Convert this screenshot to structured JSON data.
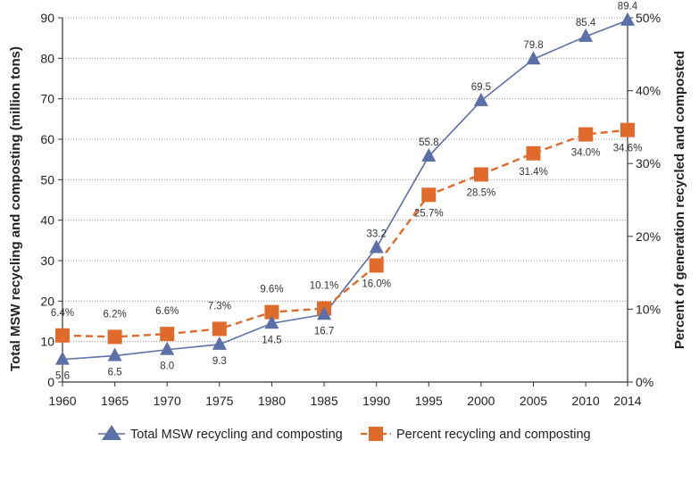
{
  "chart_data": {
    "type": "line",
    "title": "",
    "x": [
      1960,
      1965,
      1970,
      1975,
      1980,
      1985,
      1990,
      1995,
      2000,
      2005,
      2010,
      2014
    ],
    "xlabels": [
      "1960",
      "1965",
      "1970",
      "1975",
      "1980",
      "1985",
      "1990",
      "1995",
      "2000",
      "2005",
      "2010",
      "2014"
    ],
    "left_axis": {
      "label": "Total MSW recycling and composting (million tons)",
      "range": [
        0,
        90
      ],
      "ticks": [
        "0",
        "10",
        "20",
        "30",
        "40",
        "50",
        "60",
        "70",
        "80",
        "90"
      ]
    },
    "right_axis": {
      "label": "Percent of generation recycled and composted",
      "range": [
        0,
        50
      ],
      "ticks": [
        "0%",
        "10%",
        "20%",
        "30%",
        "40%",
        "50%"
      ]
    },
    "grid": true,
    "legend_position": "bottom-center",
    "series": [
      {
        "name": "Total MSW recycling and composting",
        "axis": "left",
        "marker": "triangle",
        "color": "#5b6fa8",
        "values": [
          5.6,
          6.5,
          8.0,
          9.3,
          14.5,
          16.7,
          33.2,
          55.8,
          69.5,
          79.8,
          85.4,
          89.4
        ],
        "labels": [
          "5.6",
          "6.5",
          "8.0",
          "9.3",
          "14.5",
          "16.7",
          "33.2",
          "55.8",
          "69.5",
          "79.8",
          "85.4",
          "89.4"
        ]
      },
      {
        "name": "Percent recycling and composting",
        "axis": "right",
        "marker": "square",
        "color": "#e06a2c",
        "values": [
          6.4,
          6.2,
          6.6,
          7.3,
          9.6,
          10.1,
          16.0,
          25.7,
          28.5,
          31.4,
          34.0,
          34.6
        ],
        "labels": [
          "6.4%",
          "6.2%",
          "6.6%",
          "7.3%",
          "9.6%",
          "10.1%",
          "16.0%",
          "25.7%",
          "28.5%",
          "31.4%",
          "34.0%",
          "34.6%"
        ]
      }
    ]
  }
}
